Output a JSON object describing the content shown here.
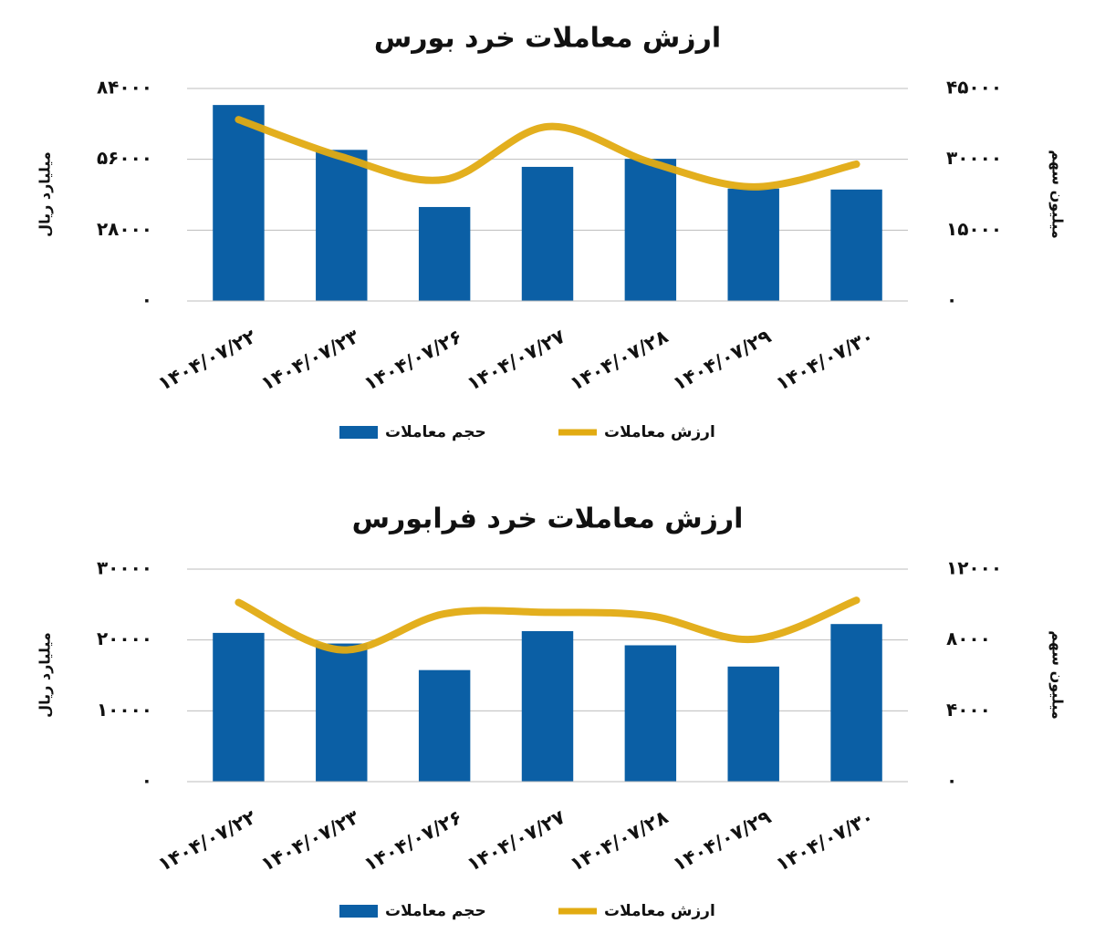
{
  "chart_data": [
    {
      "type": "bar-line",
      "title": "ارزش معاملات خرد بورس",
      "y_label": "میلیارد ریال",
      "y2_label": "میلیون سهم",
      "categories": [
        "۱۴۰۴/۰۷/۲۲",
        "۱۴۰۴/۰۷/۲۳",
        "۱۴۰۴/۰۷/۲۶",
        "۱۴۰۴/۰۷/۲۷",
        "۱۴۰۴/۰۷/۲۸",
        "۱۴۰۴/۰۷/۲۹",
        "۱۴۰۴/۰۷/۳۰"
      ],
      "series": [
        {
          "name": "حجم معاملات",
          "type": "bar",
          "axis": "y2",
          "color": "#0b5fa5",
          "values": [
            41500,
            32000,
            19900,
            28400,
            30100,
            23800,
            23600
          ]
        },
        {
          "name": "ارزش معاملات",
          "type": "line",
          "axis": "y",
          "color": "#e2ab12",
          "values": [
            71700,
            57000,
            48000,
            68900,
            54800,
            45100,
            54100
          ]
        }
      ],
      "ylim": [
        0,
        84000
      ],
      "yticks": [
        {
          "value": 0,
          "label": "۰"
        },
        {
          "value": 28000,
          "label": "۲۸۰۰۰"
        },
        {
          "value": 56000,
          "label": "۵۶۰۰۰"
        },
        {
          "value": 84000,
          "label": "۸۴۰۰۰"
        }
      ],
      "y2lim": [
        0,
        45000
      ],
      "y2ticks": [
        {
          "value": 0,
          "label": "۰"
        },
        {
          "value": 15000,
          "label": "۱۵۰۰۰"
        },
        {
          "value": 30000,
          "label": "۳۰۰۰۰"
        },
        {
          "value": 45000,
          "label": "۴۵۰۰۰"
        }
      ],
      "grid": true,
      "legend": "bottom"
    },
    {
      "type": "bar-line",
      "title": "ارزش معاملات خرد فرابورس",
      "y_label": "میلیارد ریال",
      "y2_label": "میلیون سهم",
      "categories": [
        "۱۴۰۴/۰۷/۲۲",
        "۱۴۰۴/۰۷/۲۳",
        "۱۴۰۴/۰۷/۲۶",
        "۱۴۰۴/۰۷/۲۷",
        "۱۴۰۴/۰۷/۲۸",
        "۱۴۰۴/۰۷/۲۹",
        "۱۴۰۴/۰۷/۳۰"
      ],
      "series": [
        {
          "name": "حجم معاملات",
          "type": "bar",
          "axis": "y2",
          "color": "#0b5fa5",
          "values": [
            8400,
            7800,
            6300,
            8500,
            7700,
            6500,
            8900
          ]
        },
        {
          "name": "ارزش معاملات",
          "type": "line",
          "axis": "y",
          "color": "#e2ab12",
          "values": [
            25300,
            18600,
            23700,
            23900,
            23400,
            20100,
            25600
          ]
        }
      ],
      "ylim": [
        0,
        30000
      ],
      "yticks": [
        {
          "value": 0,
          "label": "۰"
        },
        {
          "value": 10000,
          "label": "۱۰۰۰۰"
        },
        {
          "value": 20000,
          "label": "۲۰۰۰۰"
        },
        {
          "value": 30000,
          "label": "۳۰۰۰۰"
        }
      ],
      "y2lim": [
        0,
        12000
      ],
      "y2ticks": [
        {
          "value": 0,
          "label": "۰"
        },
        {
          "value": 4000,
          "label": "۴۰۰۰"
        },
        {
          "value": 8000,
          "label": "۸۰۰۰"
        },
        {
          "value": 12000,
          "label": "۱۲۰۰۰"
        }
      ],
      "grid": true,
      "legend": "bottom"
    }
  ]
}
